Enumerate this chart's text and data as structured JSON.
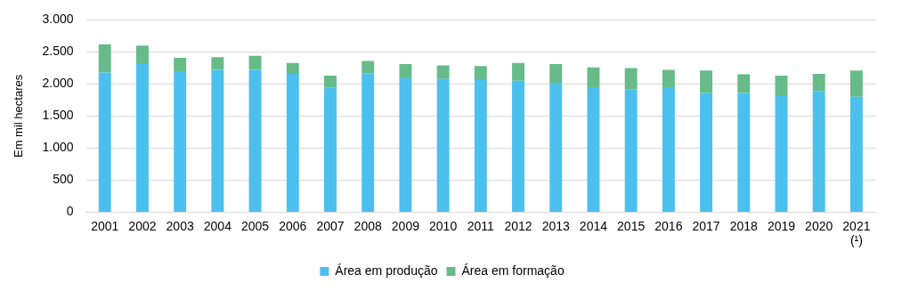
{
  "chart_data": {
    "type": "bar",
    "stacked": true,
    "ylabel": "Em mil hectares",
    "categories": [
      "2001",
      "2002",
      "2003",
      "2004",
      "2005",
      "2006",
      "2007",
      "2008",
      "2009",
      "2010",
      "2011",
      "2012",
      "2013",
      "2014",
      "2015",
      "2016",
      "2017",
      "2018",
      "2019",
      "2020",
      "2021\n(¹)"
    ],
    "series": [
      {
        "name": "Área em produção",
        "color": "#4bc0ee",
        "values": [
          2180,
          2310,
          2200,
          2220,
          2220,
          2160,
          1940,
          2170,
          2090,
          2080,
          2060,
          2050,
          2020,
          1950,
          1920,
          1950,
          1860,
          1860,
          1810,
          1890,
          1800
        ]
      },
      {
        "name": "Área em formação",
        "color": "#66bb88",
        "values": [
          440,
          290,
          210,
          200,
          220,
          170,
          190,
          190,
          220,
          210,
          220,
          280,
          290,
          310,
          330,
          270,
          350,
          290,
          320,
          270,
          410
        ]
      }
    ],
    "ylim": [
      0,
      3000
    ],
    "yticks": [
      {
        "value": 0,
        "label": "0"
      },
      {
        "value": 500,
        "label": "500"
      },
      {
        "value": 1000,
        "label": "1.000"
      },
      {
        "value": 1500,
        "label": "1.500"
      },
      {
        "value": 2000,
        "label": "2.000"
      },
      {
        "value": 2500,
        "label": "2.500"
      },
      {
        "value": 3000,
        "label": "3.000"
      }
    ],
    "grid": "y",
    "legend": "bottom"
  }
}
